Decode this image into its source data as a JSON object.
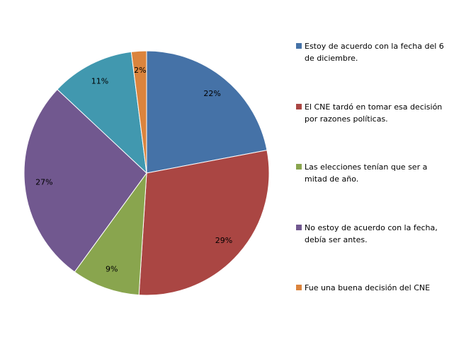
{
  "chart_data": {
    "type": "pie",
    "categories": [
      "Estoy de acuerdo con la fecha del 6 de diciembre.",
      "El CNE tardó en tomar  esa decisión por razones políticas.",
      "Las elecciones tenían que ser a mitad de año.",
      "No estoy de acuerdo con la fecha, debía ser antes.",
      null,
      "Fue una buena decisión del CNE"
    ],
    "values": [
      22,
      29,
      9,
      27,
      11,
      2
    ],
    "value_labels": [
      "22%",
      "29%",
      "9%",
      "27%",
      "11%",
      "2%"
    ],
    "colors": [
      "#4572a7",
      "#aa4643",
      "#89a54e",
      "#71588f",
      "#4198af",
      "#db843d"
    ],
    "legend": "right"
  }
}
